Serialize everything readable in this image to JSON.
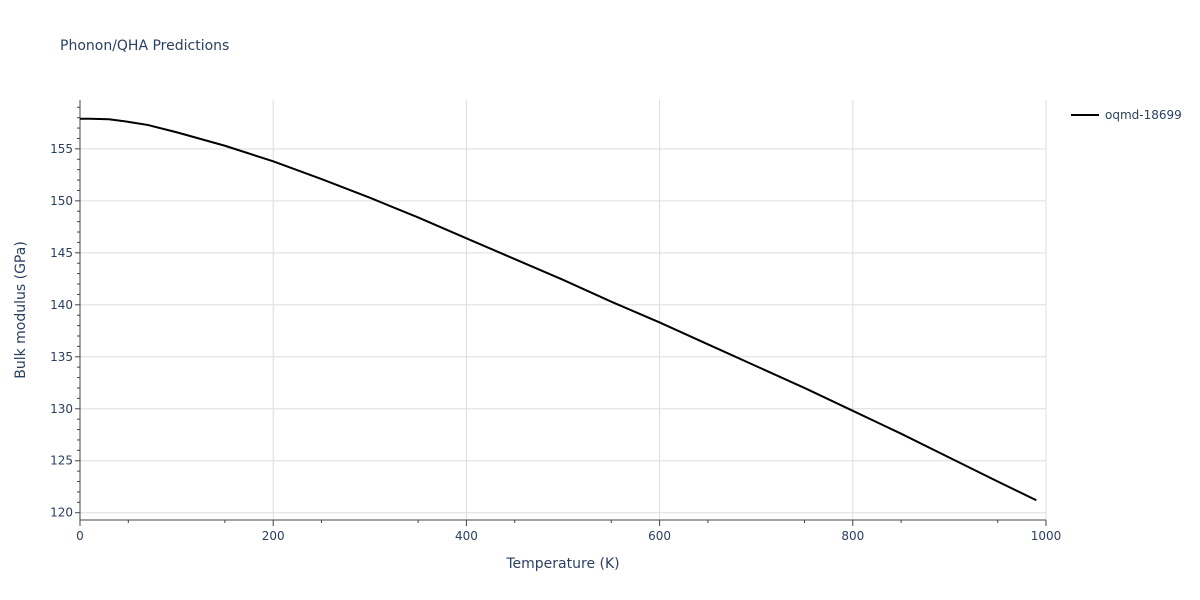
{
  "chart_data": {
    "type": "line",
    "title": "Phonon/QHA Predictions",
    "xlabel": "Temperature (K)",
    "ylabel": "Bulk modulus (GPa)",
    "xlim": [
      0,
      1000
    ],
    "ylim": [
      119.3,
      159.7
    ],
    "x_ticks": [
      0,
      200,
      400,
      600,
      800,
      1000
    ],
    "y_ticks": [
      120,
      125,
      130,
      135,
      140,
      145,
      150,
      155
    ],
    "grid": true,
    "legend_position": "top-right",
    "series": [
      {
        "name": "oqmd-18699",
        "color": "#000000",
        "x": [
          0,
          10,
          30,
          50,
          70,
          100,
          150,
          200,
          250,
          300,
          350,
          400,
          450,
          500,
          550,
          600,
          650,
          700,
          750,
          800,
          850,
          900,
          950,
          990
        ],
        "y": [
          157.9,
          157.9,
          157.85,
          157.6,
          157.3,
          156.6,
          155.3,
          153.8,
          152.1,
          150.3,
          148.4,
          146.4,
          144.4,
          142.4,
          140.3,
          138.3,
          136.2,
          134.1,
          132.0,
          129.8,
          127.6,
          125.3,
          123.0,
          121.2
        ]
      }
    ]
  }
}
